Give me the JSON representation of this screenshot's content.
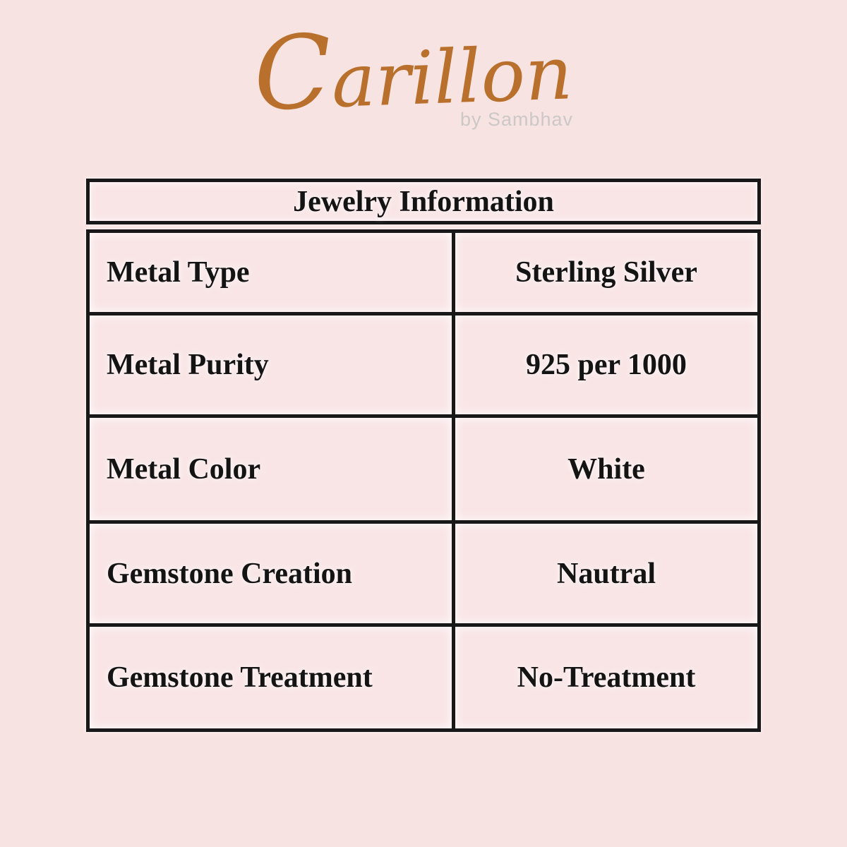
{
  "brand": {
    "name": "Carillon",
    "byline": "by Sambhav",
    "logo_color": "#b8702c",
    "byline_color": "#cbc8c6"
  },
  "colors": {
    "background": "#f8e3e3",
    "table_border": "#181818",
    "text": "#141414"
  },
  "table": {
    "title": "Jewelry Information",
    "rows": [
      {
        "label": "Metal Type",
        "value": "Sterling Silver"
      },
      {
        "label": "Metal Purity",
        "value": "925 per 1000"
      },
      {
        "label": "Metal Color",
        "value": "White"
      },
      {
        "label": "Gemstone Creation",
        "value": "Nautral"
      },
      {
        "label": "Gemstone Treatment",
        "value": "No-Treatment"
      }
    ]
  }
}
